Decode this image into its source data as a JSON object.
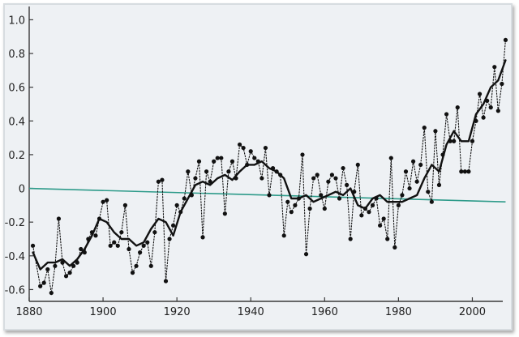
{
  "chart_data": {
    "type": "line",
    "title": "",
    "xlabel": "",
    "ylabel": "",
    "xlim": [
      1880,
      2010
    ],
    "ylim": [
      -0.67,
      1.05
    ],
    "x_ticks": [
      1880,
      1900,
      1920,
      1940,
      1960,
      1980,
      2000
    ],
    "y_ticks": [
      1.0,
      0.8,
      0.6,
      0.4,
      0.2,
      0,
      -0.2,
      -0.4,
      -0.6
    ],
    "y_tick_labels": [
      "1.0",
      "0.8",
      "0.6",
      "0.4",
      "0.2",
      "0",
      "-0.2",
      "-0.4",
      "-0.6"
    ],
    "reference_line": {
      "y_start": 0.0,
      "y_end": -0.08,
      "x_start": 1880,
      "x_end": 2009
    },
    "grid": false,
    "series": [
      {
        "style": "dotted-with-markers",
        "x": [
          1881,
          1883,
          1884,
          1885,
          1886,
          1887,
          1888,
          1889,
          1890,
          1891,
          1892,
          1893,
          1894,
          1895,
          1896,
          1897,
          1898,
          1899,
          1900,
          1901,
          1902,
          1903,
          1904,
          1905,
          1906,
          1907,
          1908,
          1909,
          1910,
          1911,
          1912,
          1913,
          1914,
          1915,
          1916,
          1917,
          1918,
          1919,
          1920,
          1921,
          1922,
          1923,
          1924,
          1925,
          1926,
          1927,
          1928,
          1929,
          1930,
          1931,
          1932,
          1933,
          1934,
          1935,
          1936,
          1937,
          1938,
          1939,
          1940,
          1941,
          1942,
          1943,
          1944,
          1945,
          1946,
          1947,
          1948,
          1949,
          1950,
          1951,
          1952,
          1953,
          1954,
          1955,
          1956,
          1957,
          1958,
          1959,
          1960,
          1961,
          1962,
          1963,
          1964,
          1965,
          1966,
          1967,
          1968,
          1969,
          1970,
          1971,
          1972,
          1973,
          1974,
          1975,
          1976,
          1977,
          1978,
          1979,
          1980,
          1981,
          1982,
          1983,
          1984,
          1985,
          1986,
          1987,
          1988,
          1989,
          1990,
          1991,
          1992,
          1993,
          1994,
          1995,
          1996,
          1997,
          1998,
          1999,
          2000,
          2001,
          2002,
          2003,
          2004,
          2005,
          2006,
          2007,
          2008,
          2009
        ],
        "y": [
          -0.34,
          -0.58,
          -0.56,
          -0.48,
          -0.62,
          -0.46,
          -0.18,
          -0.44,
          -0.52,
          -0.5,
          -0.46,
          -0.44,
          -0.36,
          -0.38,
          -0.3,
          -0.26,
          -0.28,
          -0.18,
          -0.08,
          -0.07,
          -0.34,
          -0.32,
          -0.34,
          -0.26,
          -0.1,
          -0.36,
          -0.5,
          -0.46,
          -0.38,
          -0.34,
          -0.32,
          -0.46,
          -0.26,
          0.04,
          0.05,
          -0.55,
          -0.3,
          -0.22,
          -0.1,
          -0.14,
          -0.06,
          0.1,
          -0.04,
          0.06,
          0.16,
          -0.29,
          0.1,
          0.04,
          0.16,
          0.18,
          0.18,
          -0.15,
          0.1,
          0.16,
          0.06,
          0.26,
          0.24,
          0.14,
          0.22,
          0.18,
          0.16,
          0.06,
          0.24,
          -0.04,
          0.12,
          0.1,
          0.08,
          -0.28,
          -0.08,
          -0.14,
          -0.1,
          -0.06,
          0.2,
          -0.39,
          -0.12,
          0.06,
          0.08,
          -0.04,
          -0.12,
          0.04,
          0.08,
          0.06,
          -0.06,
          0.12,
          0.02,
          -0.3,
          -0.02,
          0.14,
          -0.16,
          -0.12,
          -0.14,
          -0.1,
          -0.06,
          -0.22,
          -0.18,
          -0.3,
          0.18,
          -0.35,
          -0.1,
          -0.04,
          0.1,
          0.0,
          0.16,
          0.04,
          0.14,
          0.36,
          -0.02,
          -0.08,
          0.34,
          0.02,
          0.2,
          0.44,
          0.28,
          0.28,
          0.48,
          0.1,
          0.1,
          0.1,
          0.28,
          0.4,
          0.56,
          0.42,
          0.52,
          0.48,
          0.72,
          0.46,
          0.62,
          0.88
        ]
      },
      {
        "style": "solid",
        "x": [
          1881,
          1883,
          1885,
          1887,
          1889,
          1891,
          1893,
          1895,
          1897,
          1899,
          1901,
          1903,
          1905,
          1907,
          1909,
          1911,
          1913,
          1915,
          1917,
          1919,
          1921,
          1923,
          1925,
          1927,
          1929,
          1931,
          1933,
          1935,
          1937,
          1939,
          1941,
          1943,
          1945,
          1947,
          1949,
          1951,
          1953,
          1955,
          1957,
          1959,
          1961,
          1963,
          1965,
          1967,
          1969,
          1971,
          1973,
          1975,
          1977,
          1979,
          1981,
          1983,
          1985,
          1987,
          1989,
          1991,
          1993,
          1995,
          1997,
          1999,
          2001,
          2003,
          2005,
          2007,
          2009
        ],
        "y": [
          -0.38,
          -0.48,
          -0.44,
          -0.44,
          -0.42,
          -0.46,
          -0.42,
          -0.36,
          -0.28,
          -0.18,
          -0.2,
          -0.26,
          -0.3,
          -0.3,
          -0.34,
          -0.32,
          -0.24,
          -0.18,
          -0.2,
          -0.28,
          -0.14,
          -0.06,
          0.02,
          0.04,
          0.02,
          0.06,
          0.08,
          0.05,
          0.1,
          0.14,
          0.14,
          0.16,
          0.12,
          0.1,
          0.06,
          -0.06,
          -0.06,
          -0.04,
          -0.08,
          -0.06,
          -0.04,
          -0.02,
          -0.04,
          0.0,
          -0.1,
          -0.12,
          -0.06,
          -0.04,
          -0.08,
          -0.08,
          -0.08,
          -0.06,
          -0.04,
          0.06,
          0.14,
          0.1,
          0.26,
          0.34,
          0.28,
          0.28,
          0.44,
          0.5,
          0.6,
          0.64,
          0.76
        ]
      }
    ]
  },
  "colors": {
    "frame_background": "#eef1f4",
    "axis": "#3a3a3a",
    "series": "#111111",
    "reference_line": "#2e9b8a"
  }
}
